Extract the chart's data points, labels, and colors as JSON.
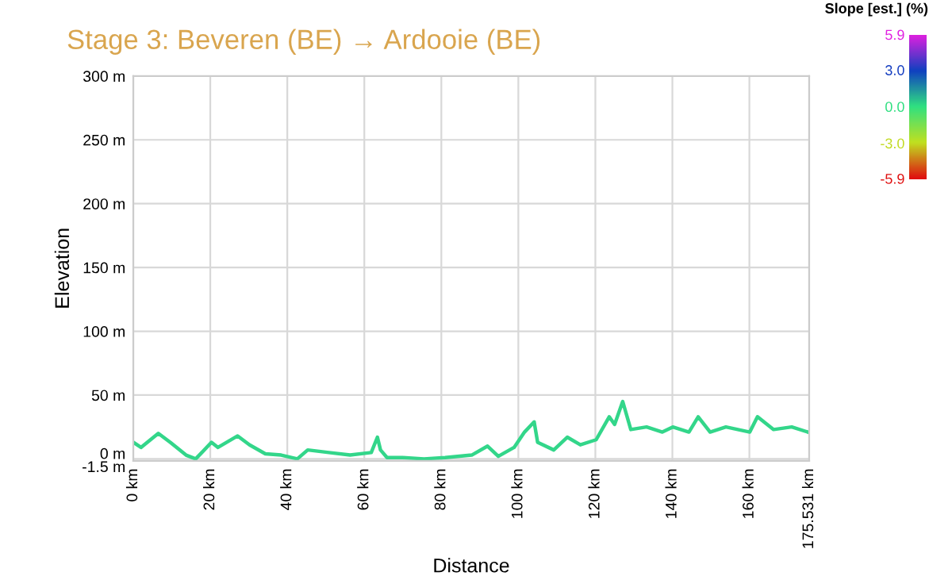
{
  "chart_data": {
    "type": "line",
    "title": "Stage 3: Beveren (BE) → Ardooie (BE)",
    "xlabel": "Distance",
    "ylabel": "Elevation",
    "clabel": "Slope [est.] (%)",
    "clim": [
      -5.9,
      5.9
    ],
    "cticks": [
      5.9,
      {
        "value": 3,
        "label": "3.0"
      },
      {
        "value": 0,
        "label": "0.0"
      },
      {
        "value": -3,
        "label": "-3.0"
      },
      -5.9
    ],
    "x": [
      0,
      2,
      6.5,
      9.6,
      13.7,
      16.2,
      17.8,
      20.3,
      22,
      27.1,
      30.2,
      34.3,
      38.4,
      42.6,
      45.3,
      50.8,
      56.3,
      61.8,
      63.4,
      64.2,
      65.9,
      70,
      75.5,
      81,
      87.9,
      92,
      94.8,
      98.9,
      101.6,
      104.1,
      105,
      109.2,
      112.7,
      116.1,
      120.2,
      123.6,
      125,
      127.1,
      129.2,
      133.3,
      137.4,
      140.1,
      144.3,
      146.7,
      149.8,
      153.9,
      160.1,
      162.1,
      166.3,
      171,
      175.2
    ],
    "series": [
      {
        "color": "#33d68a",
        "values": [
          13,
          9,
          20,
          13,
          3,
          0,
          5,
          13,
          9,
          18,
          11,
          4,
          3,
          0,
          7,
          5,
          3,
          5,
          17,
          7,
          1,
          1,
          0,
          1,
          3,
          10,
          2,
          9,
          21,
          29,
          13,
          7,
          17,
          11,
          15,
          33,
          27,
          45,
          23,
          25,
          21,
          25,
          21,
          33,
          21,
          25,
          21,
          33,
          23,
          25,
          21
        ]
      }
    ],
    "xlim": [
      0,
      175.531
    ],
    "xticks": [
      {
        "value": 0,
        "label": "0 km"
      },
      {
        "value": 20,
        "label": "20 km"
      },
      {
        "value": 40,
        "label": "40 km"
      },
      {
        "value": 60,
        "label": "60 km"
      },
      {
        "value": 80,
        "label": "80 km"
      },
      {
        "value": 100,
        "label": "100 km"
      },
      {
        "value": 120,
        "label": "120 km"
      },
      {
        "value": 140,
        "label": "140 km"
      },
      {
        "value": 160,
        "label": "160 km"
      },
      {
        "value": 175.531,
        "label": "175.531 km"
      }
    ],
    "ylim": [
      -1.5,
      300
    ],
    "yticks": [
      {
        "value": -1.5,
        "label": "-1.5 m"
      },
      {
        "value": 0,
        "label": "0 m"
      },
      {
        "value": 50,
        "label": "50 m"
      },
      {
        "value": 100,
        "label": "100 m"
      },
      {
        "value": 150,
        "label": "150 m"
      },
      {
        "value": 200,
        "label": "200 m"
      },
      {
        "value": 250,
        "label": "250 m"
      },
      {
        "value": 300,
        "label": "300 m"
      }
    ],
    "grid": true,
    "marker": "none",
    "line_style": "solid"
  }
}
